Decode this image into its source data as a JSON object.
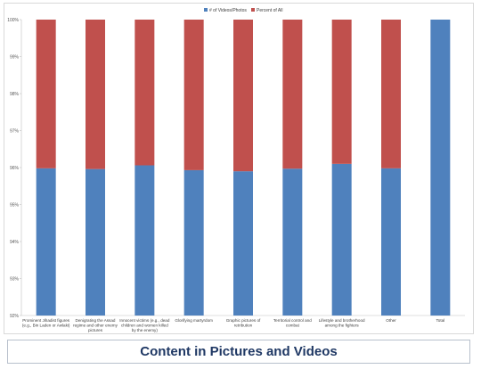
{
  "chart_data": {
    "type": "bar",
    "stacked": "percent",
    "categories": [
      [
        "Prominent Jihadist figures",
        "(e.g., Bin Laden or Awlaki)"
      ],
      [
        "Denigrating the Assad",
        "regime and other enemy",
        "pictures"
      ],
      [
        "Innocent victims (e.g., dead",
        "children and women killed",
        "by the enemy)"
      ],
      [
        "Glorifying martyrdom"
      ],
      [
        "Graphic pictures of",
        "retribution"
      ],
      [
        "Territorial control and",
        "combat"
      ],
      [
        "Lifestyle and brotherhood",
        "among the fighters"
      ],
      [
        "Other"
      ],
      [
        "Total"
      ]
    ],
    "series": [
      {
        "name": "# of Videos/Photos",
        "color": "#4f81bd",
        "values": [
          95.98,
          95.96,
          96.06,
          95.93,
          95.9,
          95.97,
          96.1,
          95.98,
          100
        ]
      },
      {
        "name": "Percent of All",
        "color": "#c0504d",
        "values": [
          4.02,
          4.04,
          3.94,
          4.07,
          4.1,
          4.03,
          3.9,
          4.02,
          0
        ]
      }
    ],
    "ylim": [
      92,
      100
    ],
    "yticks": [
      "92%",
      "93%",
      "94%",
      "95%",
      "96%",
      "97%",
      "98%",
      "99%",
      "100%"
    ],
    "grid": false,
    "legend": "top-center"
  },
  "title": "Content in Pictures and Videos"
}
